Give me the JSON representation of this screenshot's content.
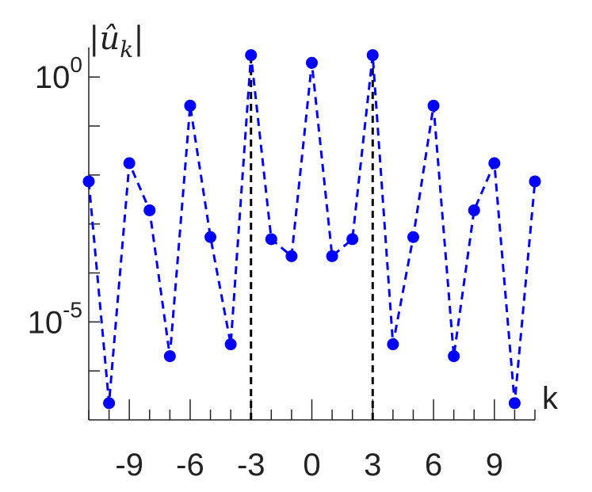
{
  "chart_data": {
    "type": "line",
    "ylabel": "|û_k|",
    "xlabel": "k",
    "x": [
      -11,
      -10,
      -9,
      -8,
      -7,
      -6,
      -5,
      -4,
      -3,
      -2,
      -1,
      0,
      1,
      2,
      3,
      4,
      5,
      6,
      7,
      8,
      9,
      10,
      11
    ],
    "series": [
      {
        "color": "#0000ff",
        "values": [
          0.0074,
          2.2e-07,
          0.0174,
          0.0019,
          2e-06,
          0.26,
          0.00054,
          3.5e-06,
          2.8,
          0.00049,
          0.00022,
          1.95,
          0.00022,
          0.00049,
          2.8,
          3.5e-06,
          0.00054,
          0.26,
          2e-06,
          0.0019,
          0.0174,
          2.2e-07,
          0.0074
        ]
      }
    ],
    "xlim": [
      -11,
      11
    ],
    "xticks": [
      -9,
      -6,
      -3,
      0,
      3,
      6,
      9
    ],
    "xminorticks": [
      -11,
      -10,
      -8,
      -7,
      -5,
      -4,
      -2,
      -1,
      1,
      2,
      4,
      5,
      7,
      8,
      10,
      11
    ],
    "ylim": [
      1e-07,
      4
    ],
    "yticks": [
      {
        "value": 1,
        "label": "10^0"
      },
      {
        "value": 1e-05,
        "label": "10^-5"
      }
    ],
    "yminorticks": [
      0.1,
      0.01,
      0.001,
      0.0001,
      1e-06
    ],
    "log_y": true,
    "vlines": [
      -3,
      3
    ],
    "vline_color": "#000000"
  }
}
